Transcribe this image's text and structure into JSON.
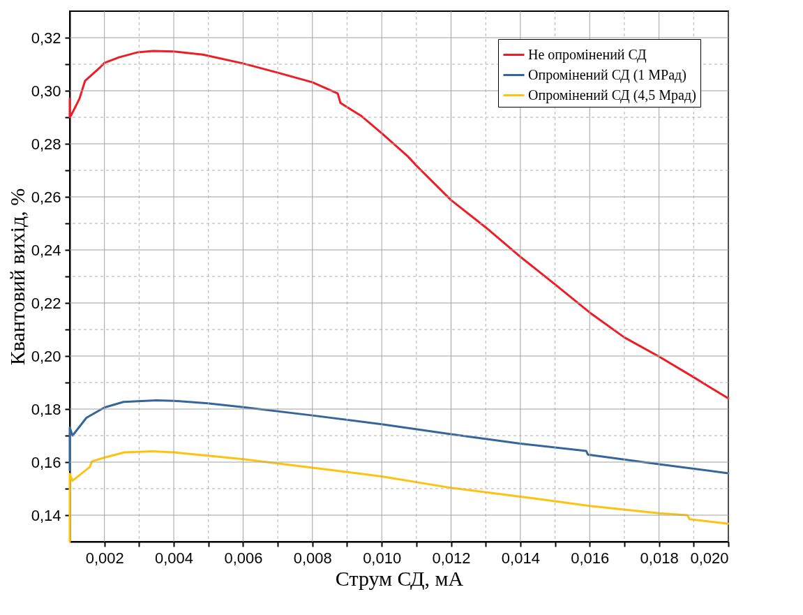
{
  "chart_data": {
    "type": "line",
    "xlabel": "Струм СД, мА",
    "ylabel": "Квантовий вихід, %",
    "xlim": [
      0.001,
      0.02
    ],
    "ylim": [
      0.13,
      0.33
    ],
    "xticks": [
      {
        "value": 0.002,
        "label": "0,002"
      },
      {
        "value": 0.003,
        "label": null
      },
      {
        "value": 0.004,
        "label": "0,004"
      },
      {
        "value": 0.005,
        "label": null
      },
      {
        "value": 0.006,
        "label": "0,006"
      },
      {
        "value": 0.007,
        "label": null
      },
      {
        "value": 0.008,
        "label": "0,008"
      },
      {
        "value": 0.009,
        "label": null
      },
      {
        "value": 0.01,
        "label": "0,010"
      },
      {
        "value": 0.011,
        "label": null
      },
      {
        "value": 0.012,
        "label": "0,012"
      },
      {
        "value": 0.013,
        "label": null
      },
      {
        "value": 0.014,
        "label": "0,014"
      },
      {
        "value": 0.015,
        "label": null
      },
      {
        "value": 0.016,
        "label": "0,016"
      },
      {
        "value": 0.017,
        "label": null
      },
      {
        "value": 0.018,
        "label": "0,018"
      },
      {
        "value": 0.019,
        "label": null
      },
      {
        "value": 0.02,
        "label": "0,020"
      }
    ],
    "yticks": [
      {
        "value": 0.14,
        "label": "0,14"
      },
      {
        "value": 0.15,
        "label": null
      },
      {
        "value": 0.16,
        "label": "0,16"
      },
      {
        "value": 0.17,
        "label": null
      },
      {
        "value": 0.18,
        "label": "0,18"
      },
      {
        "value": 0.19,
        "label": null
      },
      {
        "value": 0.2,
        "label": "0,20"
      },
      {
        "value": 0.21,
        "label": null
      },
      {
        "value": 0.22,
        "label": "0,22"
      },
      {
        "value": 0.23,
        "label": null
      },
      {
        "value": 0.24,
        "label": "0,24"
      },
      {
        "value": 0.25,
        "label": null
      },
      {
        "value": 0.26,
        "label": "0,26"
      },
      {
        "value": 0.27,
        "label": null
      },
      {
        "value": 0.28,
        "label": "0,28"
      },
      {
        "value": 0.29,
        "label": null
      },
      {
        "value": 0.3,
        "label": "0,30"
      },
      {
        "value": 0.31,
        "label": null
      },
      {
        "value": 0.32,
        "label": "0,32"
      }
    ],
    "grid": true,
    "legend": "top right",
    "series": [
      {
        "name": "Не опромінений СД",
        "color": "#ee1c25",
        "x": [
          0.001,
          0.001,
          0.00105,
          0.00128,
          0.00144,
          0.00189,
          0.002,
          0.00242,
          0.00296,
          0.0034,
          0.004,
          0.00484,
          0.006,
          0.007,
          0.008,
          0.00873,
          0.00881,
          0.0094,
          0.01,
          0.01075,
          0.01102,
          0.012,
          0.013,
          0.014,
          0.015,
          0.016,
          0.017,
          0.018,
          0.019,
          0.02
        ],
        "values": [
          0.297,
          0.29,
          0.291,
          0.297,
          0.3037,
          0.309,
          0.3105,
          0.3126,
          0.3145,
          0.315,
          0.3148,
          0.3136,
          0.3103,
          0.3068,
          0.3032,
          0.299,
          0.2954,
          0.2906,
          0.284,
          0.2753,
          0.2715,
          0.2588,
          0.2485,
          0.2374,
          0.227,
          0.2164,
          0.207,
          0.1998,
          0.192,
          0.184
        ]
      },
      {
        "name": "Опромінений СД (1 МРад)",
        "color": "#35659b",
        "x": [
          0.001,
          0.001,
          0.00108,
          0.00148,
          0.002,
          0.00255,
          0.0035,
          0.004,
          0.00498,
          0.006,
          0.008,
          0.01,
          0.012,
          0.014,
          0.0159,
          0.01595,
          0.018,
          0.02
        ],
        "values": [
          0.157,
          0.173,
          0.17,
          0.1767,
          0.1806,
          0.1827,
          0.1833,
          0.1831,
          0.1822,
          0.1807,
          0.1776,
          0.1743,
          0.1705,
          0.167,
          0.1642,
          0.1628,
          0.1592,
          0.1558
        ]
      },
      {
        "name": "Опромінений СД (4,5 Мрад)",
        "color": "#ffc20e",
        "x": [
          0.001,
          0.001,
          0.00108,
          0.00158,
          0.00164,
          0.002,
          0.00258,
          0.0034,
          0.004,
          0.006,
          0.008,
          0.01,
          0.012,
          0.014,
          0.016,
          0.018,
          0.01882,
          0.01888,
          0.02
        ],
        "values": [
          0.13,
          0.1556,
          0.153,
          0.1582,
          0.1603,
          0.1617,
          0.1637,
          0.1641,
          0.1637,
          0.1611,
          0.1579,
          0.1546,
          0.1503,
          0.147,
          0.1435,
          0.1407,
          0.14,
          0.1385,
          0.1368
        ]
      }
    ]
  }
}
